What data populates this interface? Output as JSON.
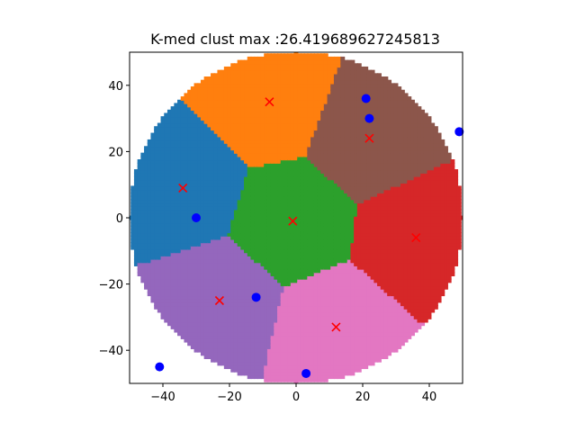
{
  "chart_data": {
    "type": "scatter",
    "title": "K-med clust max :26.419689627245813",
    "xlabel": "",
    "ylabel": "",
    "xlim": [
      -50,
      50
    ],
    "ylim": [
      -50,
      50
    ],
    "xticks": [
      -40,
      -20,
      0,
      20,
      40
    ],
    "yticks": [
      -40,
      -20,
      0,
      20,
      40
    ],
    "grid": false,
    "disk": {
      "center": [
        0,
        0
      ],
      "radius": 50
    },
    "cluster_colors": [
      "#1f77b4",
      "#ff7f0e",
      "#2ca02c",
      "#d62728",
      "#9467bd",
      "#8c564b",
      "#e377c2"
    ],
    "series": [
      {
        "marker": "x",
        "color": "#ff0000",
        "points": [
          {
            "x": 36,
            "y": -6
          },
          {
            "x": -34,
            "y": 9
          },
          {
            "x": -8,
            "y": 35
          },
          {
            "x": -1,
            "y": -1
          },
          {
            "x": -23,
            "y": -25
          },
          {
            "x": 22,
            "y": 24
          },
          {
            "x": 12,
            "y": -33
          }
        ]
      },
      {
        "marker": "o",
        "color": "#0000ff",
        "points": [
          {
            "x": 21,
            "y": 36
          },
          {
            "x": 22,
            "y": 30
          },
          {
            "x": 49,
            "y": 26
          },
          {
            "x": -30,
            "y": 0
          },
          {
            "x": -12,
            "y": -24
          },
          {
            "x": -41,
            "y": -45
          },
          {
            "x": 3,
            "y": -47
          }
        ]
      }
    ]
  }
}
